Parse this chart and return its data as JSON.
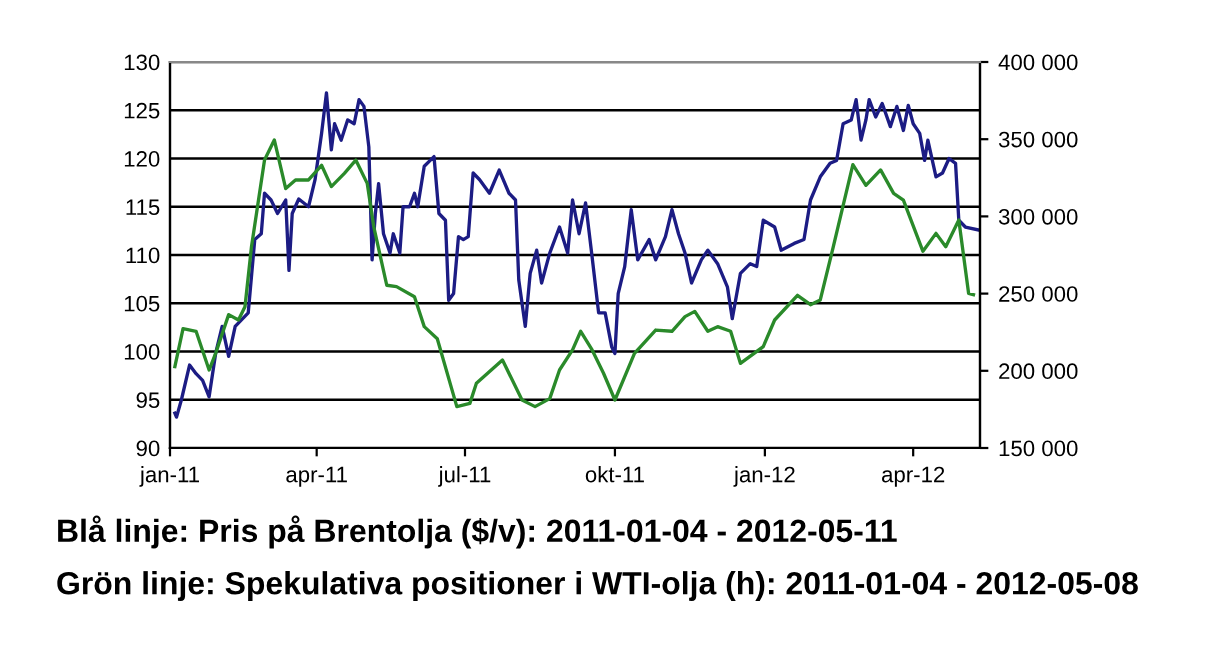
{
  "chart_data": {
    "type": "line",
    "xlim": [
      "2011-01-01",
      "2012-05-12"
    ],
    "xticks": [
      {
        "value": "2011-01-01",
        "label": "jan-11"
      },
      {
        "value": "2011-04-01",
        "label": "apr-11"
      },
      {
        "value": "2011-07-01",
        "label": "jul-11"
      },
      {
        "value": "2011-10-01",
        "label": "okt-11"
      },
      {
        "value": "2012-01-01",
        "label": "jan-12"
      },
      {
        "value": "2012-04-01",
        "label": "apr-12"
      }
    ],
    "ylim": [
      90,
      130
    ],
    "yticks": [
      90,
      95,
      100,
      105,
      110,
      115,
      120,
      125,
      130
    ],
    "y2lim": [
      150000,
      400000
    ],
    "y2ticks": [
      {
        "value": 150000,
        "label": "150 000"
      },
      {
        "value": 200000,
        "label": "200 000"
      },
      {
        "value": 250000,
        "label": "250 000"
      },
      {
        "value": 300000,
        "label": "300 000"
      },
      {
        "value": 350000,
        "label": "350 000"
      },
      {
        "value": 400000,
        "label": "400 000"
      }
    ],
    "grid": "y",
    "legend": false,
    "marker": "none",
    "line_style": "solid",
    "annotations": [
      "Blå linje: Pris på Brentolja ($/v): 2011-01-04 - 2012-05-11",
      "Grön linje: Spekulativa positioner i WTI-olja (h): 2011-01-04 - 2012-05-08"
    ],
    "series": [
      {
        "color": "#1c1c84",
        "x": [
          "2011-01-04",
          "2011-01-05",
          "2011-01-08",
          "2011-01-13",
          "2011-01-17",
          "2011-01-21",
          "2011-01-25",
          "2011-01-29",
          "2011-02-02",
          "2011-02-06",
          "2011-02-10",
          "2011-02-14",
          "2011-02-18",
          "2011-02-22",
          "2011-02-26",
          "2011-02-28",
          "2011-03-04",
          "2011-03-08",
          "2011-03-13",
          "2011-03-15",
          "2011-03-17",
          "2011-03-21",
          "2011-03-27",
          "2011-03-31",
          "2011-04-04",
          "2011-04-07",
          "2011-04-10",
          "2011-04-12",
          "2011-04-16",
          "2011-04-20",
          "2011-04-24",
          "2011-04-27",
          "2011-04-30",
          "2011-05-03",
          "2011-05-05",
          "2011-05-07",
          "2011-05-09",
          "2011-05-12",
          "2011-05-16",
          "2011-05-18",
          "2011-05-22",
          "2011-05-24",
          "2011-05-28",
          "2011-05-31",
          "2011-06-02",
          "2011-06-06",
          "2011-06-12",
          "2011-06-15",
          "2011-06-19",
          "2011-06-21",
          "2011-06-24",
          "2011-06-27",
          "2011-06-30",
          "2011-07-03",
          "2011-07-06",
          "2011-07-10",
          "2011-07-16",
          "2011-07-22",
          "2011-07-28",
          "2011-08-01",
          "2011-08-03",
          "2011-08-07",
          "2011-08-10",
          "2011-08-14",
          "2011-08-17",
          "2011-08-22",
          "2011-08-28",
          "2011-09-02",
          "2011-09-05",
          "2011-09-09",
          "2011-09-13",
          "2011-09-17",
          "2011-09-21",
          "2011-09-25",
          "2011-09-29",
          "2011-10-01",
          "2011-10-03",
          "2011-10-07",
          "2011-10-11",
          "2011-10-15",
          "2011-10-22",
          "2011-10-26",
          "2011-11-01",
          "2011-11-05",
          "2011-11-09",
          "2011-11-13",
          "2011-11-17",
          "2011-11-23",
          "2011-11-27",
          "2011-12-03",
          "2011-12-09",
          "2011-12-12",
          "2011-12-17",
          "2011-12-23",
          "2011-12-27",
          "2011-12-31",
          "2012-01-07",
          "2012-01-11",
          "2012-01-19",
          "2012-01-25",
          "2012-01-29",
          "2012-02-04",
          "2012-02-10",
          "2012-02-14",
          "2012-02-18",
          "2012-02-23",
          "2012-02-26",
          "2012-02-29",
          "2012-03-03",
          "2012-03-05",
          "2012-03-09",
          "2012-03-13",
          "2012-03-18",
          "2012-03-22",
          "2012-03-26",
          "2012-03-29",
          "2012-04-01",
          "2012-04-05",
          "2012-04-08",
          "2012-04-10",
          "2012-04-15",
          "2012-04-19",
          "2012-04-23",
          "2012-04-27",
          "2012-04-29",
          "2012-05-03",
          "2012-05-11"
        ],
        "values": [
          93.6,
          93.2,
          95.0,
          98.6,
          97.7,
          97.0,
          95.3,
          99.8,
          102.6,
          99.5,
          102.6,
          103.3,
          104.0,
          111.6,
          112.2,
          116.4,
          115.7,
          114.3,
          115.7,
          108.4,
          114.3,
          115.8,
          115.0,
          117.8,
          122.6,
          126.8,
          120.9,
          123.6,
          121.9,
          124.0,
          123.6,
          126.1,
          125.4,
          121.2,
          109.5,
          114.3,
          117.4,
          112.2,
          110.2,
          112.2,
          110.2,
          115.0,
          115.0,
          116.4,
          115.0,
          119.2,
          120.2,
          114.3,
          113.6,
          105.3,
          106.0,
          111.9,
          111.6,
          111.9,
          118.5,
          117.8,
          116.4,
          118.8,
          116.4,
          115.7,
          107.4,
          102.6,
          108.1,
          110.5,
          107.1,
          110.2,
          112.9,
          110.2,
          115.7,
          112.2,
          115.4,
          109.8,
          104.0,
          104.0,
          100.5,
          99.8,
          106.0,
          108.8,
          114.7,
          109.5,
          111.6,
          109.5,
          111.9,
          114.7,
          112.2,
          110.2,
          107.1,
          109.5,
          110.5,
          109.1,
          106.7,
          103.4,
          108.1,
          109.1,
          108.8,
          113.6,
          112.9,
          110.5,
          111.2,
          111.6,
          115.7,
          118.1,
          119.5,
          119.8,
          123.6,
          124.0,
          126.1,
          121.9,
          124.0,
          126.1,
          124.3,
          125.7,
          123.3,
          125.4,
          122.9,
          125.5,
          123.6,
          122.6,
          119.8,
          121.9,
          118.1,
          118.5,
          120.0,
          119.5,
          113.6,
          112.9,
          112.6
        ]
      },
      {
        "color": "#2a8a2a",
        "axis": "y2",
        "x": [
          "2011-01-04",
          "2011-01-09",
          "2011-01-17",
          "2011-01-25",
          "2011-01-29",
          "2011-02-06",
          "2011-02-12",
          "2011-02-16",
          "2011-02-20",
          "2011-02-28",
          "2011-03-06",
          "2011-03-13",
          "2011-03-19",
          "2011-03-27",
          "2011-04-04",
          "2011-04-10",
          "2011-04-18",
          "2011-04-25",
          "2011-05-02",
          "2011-05-06",
          "2011-05-14",
          "2011-05-20",
          "2011-05-31",
          "2011-06-06",
          "2011-06-14",
          "2011-06-26",
          "2011-07-04",
          "2011-07-08",
          "2011-07-24",
          "2011-08-05",
          "2011-08-13",
          "2011-08-22",
          "2011-08-28",
          "2011-09-05",
          "2011-09-10",
          "2011-09-17",
          "2011-09-24",
          "2011-10-01",
          "2011-10-13",
          "2011-10-26",
          "2011-11-05",
          "2011-11-13",
          "2011-11-19",
          "2011-11-27",
          "2011-12-03",
          "2011-12-11",
          "2011-12-17",
          "2011-12-31",
          "2012-01-07",
          "2012-01-21",
          "2012-01-29",
          "2012-02-04",
          "2012-02-12",
          "2012-02-24",
          "2012-03-03",
          "2012-03-12",
          "2012-03-20",
          "2012-03-26",
          "2012-04-07",
          "2012-04-15",
          "2012-04-21",
          "2012-04-29",
          "2012-05-05",
          "2012-05-08"
        ],
        "values": [
          202700,
          227300,
          225600,
          200500,
          211300,
          236400,
          232900,
          241500,
          280400,
          336500,
          349500,
          318000,
          323600,
          323600,
          333100,
          319300,
          327900,
          336500,
          321400,
          293400,
          255400,
          254500,
          248000,
          228600,
          220800,
          176800,
          178900,
          191900,
          207000,
          181100,
          176800,
          182000,
          200500,
          213500,
          225600,
          213500,
          198400,
          181100,
          211300,
          226400,
          225600,
          235100,
          238500,
          225600,
          228600,
          225600,
          204800,
          215600,
          232900,
          248900,
          242800,
          245900,
          280400,
          333500,
          320100,
          330100,
          314900,
          310600,
          277400,
          289000,
          280400,
          297700,
          250200,
          249300
        ]
      }
    ]
  }
}
